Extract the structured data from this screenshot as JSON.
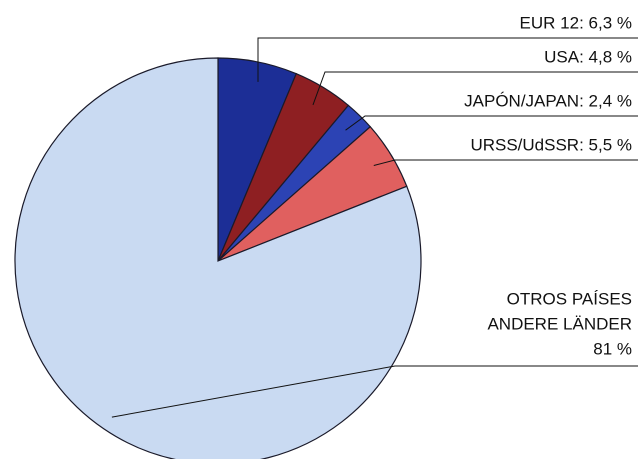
{
  "chart_data": {
    "type": "pie",
    "values": [
      6.3,
      4.8,
      2.4,
      5.5,
      81
    ],
    "value_labels": [
      [
        "EUR 12: 6,3 %"
      ],
      [
        "USA: 4,8 %"
      ],
      [
        "JAPÓN/JAPAN: 2,4 %"
      ],
      [
        "URSS/UdSSR: 5,5 %"
      ],
      [
        "OTROS PAÍSES",
        "ANDERE LÄNDER",
        "81 %"
      ]
    ],
    "colors": [
      "#1c2e96",
      "#8e1f22",
      "#2c43b4",
      "#e0605f",
      "#c9daf2"
    ]
  }
}
